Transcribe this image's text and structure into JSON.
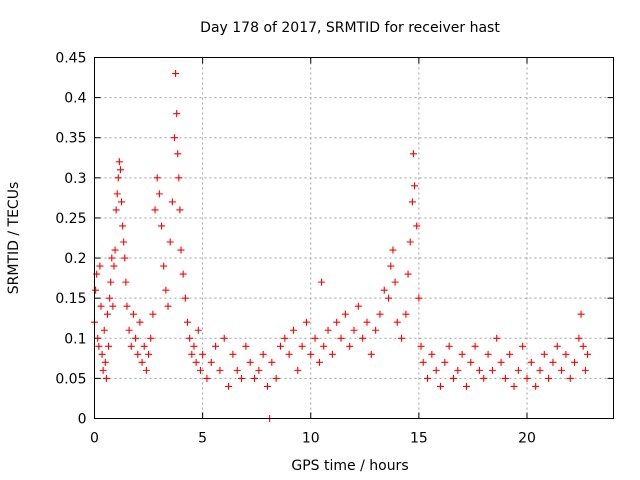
{
  "chart_data": {
    "type": "scatter",
    "title": "Day 178 of 2017, SRMTID for receiver hast",
    "xlabel": "GPS time / hours",
    "ylabel": "SRMTID / TECUs",
    "xlim": [
      0,
      24
    ],
    "ylim": [
      0,
      0.45
    ],
    "xticks": [
      0,
      5,
      10,
      15,
      20
    ],
    "xtick_labels": [
      "0",
      "5",
      "10",
      "15",
      "20"
    ],
    "yticks": [
      0,
      0.05,
      0.1,
      0.15,
      0.2,
      0.25,
      0.3,
      0.35,
      0.4,
      0.45
    ],
    "ytick_labels": [
      "0",
      "0.05",
      "0.1",
      "0.15",
      "0.2",
      "0.25",
      "0.3",
      "0.35",
      "0.4",
      "0.45"
    ],
    "grid": true,
    "marker": "+",
    "color": "#ff0000",
    "series": [
      {
        "name": "SRMTID",
        "points": [
          [
            0.0,
            0.12
          ],
          [
            0.05,
            0.16
          ],
          [
            0.1,
            0.18
          ],
          [
            0.15,
            0.1
          ],
          [
            0.2,
            0.09
          ],
          [
            0.25,
            0.19
          ],
          [
            0.3,
            0.14
          ],
          [
            0.35,
            0.08
          ],
          [
            0.4,
            0.06
          ],
          [
            0.45,
            0.11
          ],
          [
            0.5,
            0.07
          ],
          [
            0.55,
            0.05
          ],
          [
            0.6,
            0.13
          ],
          [
            0.65,
            0.09
          ],
          [
            0.7,
            0.15
          ],
          [
            0.75,
            0.17
          ],
          [
            0.8,
            0.2
          ],
          [
            0.85,
            0.14
          ],
          [
            0.9,
            0.19
          ],
          [
            0.95,
            0.21
          ],
          [
            1.0,
            0.26
          ],
          [
            1.05,
            0.28
          ],
          [
            1.1,
            0.3
          ],
          [
            1.15,
            0.32
          ],
          [
            1.2,
            0.31
          ],
          [
            1.25,
            0.27
          ],
          [
            1.3,
            0.24
          ],
          [
            1.35,
            0.22
          ],
          [
            1.4,
            0.2
          ],
          [
            1.45,
            0.17
          ],
          [
            1.5,
            0.14
          ],
          [
            1.6,
            0.11
          ],
          [
            1.7,
            0.09
          ],
          [
            1.8,
            0.13
          ],
          [
            1.9,
            0.1
          ],
          [
            2.0,
            0.08
          ],
          [
            2.1,
            0.12
          ],
          [
            2.2,
            0.07
          ],
          [
            2.3,
            0.09
          ],
          [
            2.4,
            0.06
          ],
          [
            2.5,
            0.08
          ],
          [
            2.6,
            0.1
          ],
          [
            2.7,
            0.13
          ],
          [
            2.8,
            0.26
          ],
          [
            2.9,
            0.3
          ],
          [
            3.0,
            0.28
          ],
          [
            3.1,
            0.24
          ],
          [
            3.2,
            0.19
          ],
          [
            3.3,
            0.16
          ],
          [
            3.4,
            0.14
          ],
          [
            3.5,
            0.22
          ],
          [
            3.6,
            0.27
          ],
          [
            3.7,
            0.35
          ],
          [
            3.75,
            0.43
          ],
          [
            3.8,
            0.38
          ],
          [
            3.85,
            0.33
          ],
          [
            3.9,
            0.3
          ],
          [
            3.95,
            0.26
          ],
          [
            4.0,
            0.21
          ],
          [
            4.1,
            0.18
          ],
          [
            4.2,
            0.15
          ],
          [
            4.3,
            0.12
          ],
          [
            4.4,
            0.1
          ],
          [
            4.5,
            0.08
          ],
          [
            4.6,
            0.09
          ],
          [
            4.7,
            0.07
          ],
          [
            4.8,
            0.11
          ],
          [
            4.9,
            0.06
          ],
          [
            5.0,
            0.08
          ],
          [
            5.2,
            0.05
          ],
          [
            5.4,
            0.07
          ],
          [
            5.6,
            0.09
          ],
          [
            5.8,
            0.06
          ],
          [
            6.0,
            0.1
          ],
          [
            6.2,
            0.04
          ],
          [
            6.4,
            0.08
          ],
          [
            6.6,
            0.06
          ],
          [
            6.8,
            0.05
          ],
          [
            7.0,
            0.09
          ],
          [
            7.2,
            0.07
          ],
          [
            7.4,
            0.05
          ],
          [
            7.6,
            0.06
          ],
          [
            7.8,
            0.08
          ],
          [
            8.0,
            0.04
          ],
          [
            8.1,
            0.0
          ],
          [
            8.2,
            0.07
          ],
          [
            8.4,
            0.05
          ],
          [
            8.6,
            0.09
          ],
          [
            8.8,
            0.1
          ],
          [
            9.0,
            0.08
          ],
          [
            9.2,
            0.11
          ],
          [
            9.4,
            0.06
          ],
          [
            9.6,
            0.09
          ],
          [
            9.8,
            0.12
          ],
          [
            10.0,
            0.08
          ],
          [
            10.2,
            0.1
          ],
          [
            10.4,
            0.07
          ],
          [
            10.5,
            0.17
          ],
          [
            10.6,
            0.09
          ],
          [
            10.8,
            0.11
          ],
          [
            11.0,
            0.08
          ],
          [
            11.2,
            0.12
          ],
          [
            11.4,
            0.1
          ],
          [
            11.6,
            0.13
          ],
          [
            11.8,
            0.09
          ],
          [
            12.0,
            0.11
          ],
          [
            12.2,
            0.14
          ],
          [
            12.4,
            0.1
          ],
          [
            12.6,
            0.12
          ],
          [
            12.8,
            0.08
          ],
          [
            13.0,
            0.11
          ],
          [
            13.2,
            0.13
          ],
          [
            13.4,
            0.16
          ],
          [
            13.6,
            0.15
          ],
          [
            13.7,
            0.19
          ],
          [
            13.8,
            0.21
          ],
          [
            13.9,
            0.17
          ],
          [
            14.0,
            0.12
          ],
          [
            14.2,
            0.1
          ],
          [
            14.4,
            0.13
          ],
          [
            14.5,
            0.18
          ],
          [
            14.6,
            0.22
          ],
          [
            14.7,
            0.27
          ],
          [
            14.75,
            0.33
          ],
          [
            14.8,
            0.29
          ],
          [
            14.9,
            0.24
          ],
          [
            15.0,
            0.15
          ],
          [
            15.1,
            0.09
          ],
          [
            15.2,
            0.07
          ],
          [
            15.4,
            0.05
          ],
          [
            15.6,
            0.08
          ],
          [
            15.8,
            0.06
          ],
          [
            16.0,
            0.04
          ],
          [
            16.2,
            0.07
          ],
          [
            16.4,
            0.09
          ],
          [
            16.6,
            0.05
          ],
          [
            16.8,
            0.06
          ],
          [
            17.0,
            0.08
          ],
          [
            17.2,
            0.04
          ],
          [
            17.4,
            0.07
          ],
          [
            17.6,
            0.09
          ],
          [
            17.8,
            0.06
          ],
          [
            18.0,
            0.05
          ],
          [
            18.2,
            0.08
          ],
          [
            18.4,
            0.06
          ],
          [
            18.6,
            0.1
          ],
          [
            18.8,
            0.07
          ],
          [
            19.0,
            0.05
          ],
          [
            19.2,
            0.08
          ],
          [
            19.4,
            0.04
          ],
          [
            19.6,
            0.06
          ],
          [
            19.8,
            0.09
          ],
          [
            20.0,
            0.05
          ],
          [
            20.2,
            0.07
          ],
          [
            20.4,
            0.04
          ],
          [
            20.6,
            0.06
          ],
          [
            20.8,
            0.08
          ],
          [
            21.0,
            0.05
          ],
          [
            21.2,
            0.07
          ],
          [
            21.4,
            0.09
          ],
          [
            21.6,
            0.06
          ],
          [
            21.8,
            0.08
          ],
          [
            22.0,
            0.05
          ],
          [
            22.2,
            0.07
          ],
          [
            22.4,
            0.1
          ],
          [
            22.5,
            0.13
          ],
          [
            22.6,
            0.09
          ],
          [
            22.7,
            0.06
          ],
          [
            22.8,
            0.08
          ]
        ]
      }
    ]
  }
}
